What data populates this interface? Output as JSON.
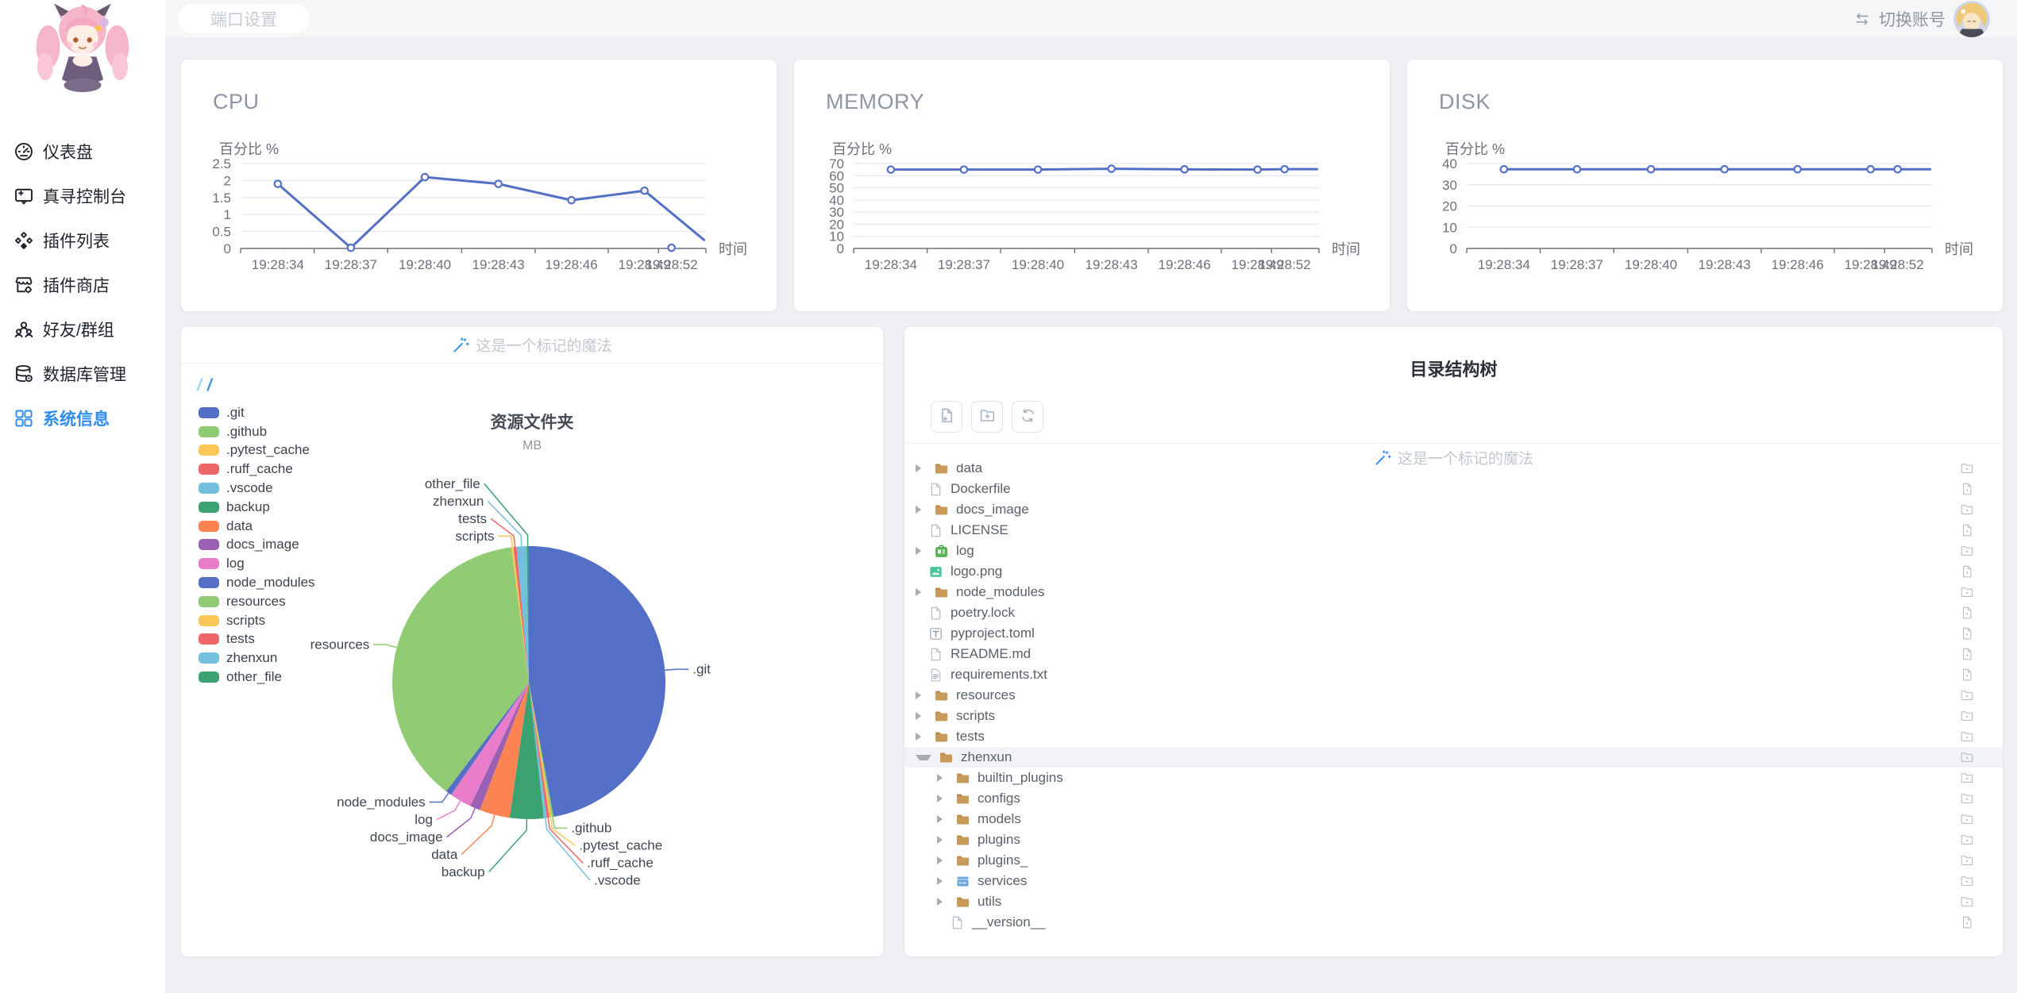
{
  "topbar": {
    "port_button": "端口设置",
    "switch_account": "切换账号"
  },
  "sidebar": {
    "items": [
      {
        "label": "仪表盘",
        "icon": "gauge-icon",
        "active": false
      },
      {
        "label": "真寻控制台",
        "icon": "console-icon",
        "active": false
      },
      {
        "label": "插件列表",
        "icon": "plugins-icon",
        "active": false
      },
      {
        "label": "插件商店",
        "icon": "shop-icon",
        "active": false
      },
      {
        "label": "好友/群组",
        "icon": "users-icon",
        "active": false
      },
      {
        "label": "数据库管理",
        "icon": "database-icon",
        "active": false
      },
      {
        "label": "系统信息",
        "icon": "grid-icon",
        "active": true
      }
    ]
  },
  "panels": {
    "resource": {
      "magic_note": "这是一个标记的魔法",
      "breadcrumb": [
        "/",
        "/"
      ]
    },
    "tree": {
      "title": "目录结构树",
      "magic_note": "这是一个标记的魔法",
      "toolbar": [
        {
          "name": "new-file-button",
          "icon": "file-plus-icon"
        },
        {
          "name": "new-folder-button",
          "icon": "folder-plus-icon"
        },
        {
          "name": "refresh-button",
          "icon": "refresh-icon"
        }
      ],
      "rows": [
        {
          "name": "data",
          "icon": "folder",
          "level": 0,
          "caret": "right"
        },
        {
          "name": "Dockerfile",
          "icon": "file",
          "level": 0,
          "caret": "none"
        },
        {
          "name": "docs_image",
          "icon": "folder",
          "level": 0,
          "caret": "right"
        },
        {
          "name": "LICENSE",
          "icon": "file",
          "level": 0,
          "caret": "none"
        },
        {
          "name": "log",
          "icon": "log",
          "level": 0,
          "caret": "right"
        },
        {
          "name": "logo.png",
          "icon": "image",
          "level": 0,
          "caret": "none"
        },
        {
          "name": "node_modules",
          "icon": "folder",
          "level": 0,
          "caret": "right"
        },
        {
          "name": "poetry.lock",
          "icon": "file",
          "level": 0,
          "caret": "none"
        },
        {
          "name": "pyproject.toml",
          "icon": "toml",
          "level": 0,
          "caret": "none"
        },
        {
          "name": "README.md",
          "icon": "file",
          "level": 0,
          "caret": "none"
        },
        {
          "name": "requirements.txt",
          "icon": "txt",
          "level": 0,
          "caret": "none"
        },
        {
          "name": "resources",
          "icon": "folder",
          "level": 0,
          "caret": "right"
        },
        {
          "name": "scripts",
          "icon": "folder",
          "level": 0,
          "caret": "right"
        },
        {
          "name": "tests",
          "icon": "folder",
          "level": 0,
          "caret": "right"
        },
        {
          "name": "zhenxun",
          "icon": "folder",
          "level": 0,
          "caret": "down",
          "selected": true
        },
        {
          "name": "builtin_plugins",
          "icon": "folder",
          "level": 1,
          "caret": "right"
        },
        {
          "name": "configs",
          "icon": "folder",
          "level": 1,
          "caret": "right"
        },
        {
          "name": "models",
          "icon": "folder",
          "level": 1,
          "caret": "right"
        },
        {
          "name": "plugins",
          "icon": "folder",
          "level": 1,
          "caret": "right"
        },
        {
          "name": "plugins_",
          "icon": "folder",
          "level": 1,
          "caret": "right"
        },
        {
          "name": "services",
          "icon": "services",
          "level": 1,
          "caret": "right"
        },
        {
          "name": "utils",
          "icon": "folder",
          "level": 1,
          "caret": "right"
        },
        {
          "name": "__version__",
          "icon": "file",
          "level": 1,
          "caret": "none"
        }
      ]
    }
  },
  "chart_data": [
    {
      "type": "line",
      "title": "CPU",
      "ylabel": "百分比 %",
      "xlabel": "时间",
      "categories": [
        "19:28:34",
        "19:28:37",
        "19:28:40",
        "19:28:43",
        "19:28:46",
        "19:28:49",
        "19:28:52"
      ],
      "values": [
        1.9,
        0.02,
        2.1,
        1.9,
        1.42,
        1.7,
        0.02
      ],
      "ylim": [
        0,
        2.5
      ],
      "yticks": [
        0,
        0.5,
        1,
        1.5,
        2,
        2.5
      ],
      "points_xf": [
        0.08,
        0.237,
        0.396,
        0.554,
        0.711,
        0.868,
        0.926
      ],
      "edge_point": {
        "xf": 0.996,
        "value": 0.25,
        "connect_from": 5
      },
      "line_color": "#5470c6",
      "grid": true,
      "legend_position": "none"
    },
    {
      "type": "line",
      "title": "MEMORY",
      "ylabel": "百分比 %",
      "xlabel": "时间",
      "categories": [
        "19:28:34",
        "19:28:37",
        "19:28:40",
        "19:28:43",
        "19:28:46",
        "19:28:49",
        "19:28:52"
      ],
      "values": [
        65,
        65,
        65,
        65.7,
        65.2,
        65,
        65.3
      ],
      "ylim": [
        0,
        70
      ],
      "yticks": [
        0,
        10,
        20,
        30,
        40,
        50,
        60,
        70
      ],
      "points_xf": [
        0.08,
        0.237,
        0.396,
        0.554,
        0.711,
        0.868,
        0.926
      ],
      "edge_point": {
        "xf": 0.996,
        "value": 65.3,
        "connect_from": 6
      },
      "line_color": "#5470c6",
      "grid": true,
      "legend_position": "none"
    },
    {
      "type": "line",
      "title": "DISK",
      "ylabel": "百分比 %",
      "xlabel": "时间",
      "categories": [
        "19:28:34",
        "19:28:37",
        "19:28:40",
        "19:28:43",
        "19:28:46",
        "19:28:49",
        "19:28:52"
      ],
      "values": [
        37.3,
        37.3,
        37.3,
        37.3,
        37.3,
        37.3,
        37.3
      ],
      "ylim": [
        0,
        40
      ],
      "yticks": [
        0,
        10,
        20,
        30,
        40
      ],
      "points_xf": [
        0.08,
        0.237,
        0.396,
        0.554,
        0.711,
        0.868,
        0.926
      ],
      "edge_point": {
        "xf": 0.996,
        "value": 37.3,
        "connect_from": 6
      },
      "line_color": "#5470c6",
      "grid": true,
      "legend_position": "none"
    },
    {
      "type": "pie",
      "title": "资源文件夹",
      "subtitle": "MB",
      "unit": "MB",
      "legend_position": "left",
      "slices": [
        {
          "label": ".git",
          "pct": 47.1,
          "color": "#5470c6"
        },
        {
          "label": ".github",
          "pct": 0.25,
          "color": "#91cc75"
        },
        {
          "label": ".pytest_cache",
          "pct": 0.25,
          "color": "#fac858"
        },
        {
          "label": ".ruff_cache",
          "pct": 0.3,
          "color": "#ee6666"
        },
        {
          "label": ".vscode",
          "pct": 0.35,
          "color": "#73c0de"
        },
        {
          "label": "backup",
          "pct": 4.0,
          "color": "#3ba272"
        },
        {
          "label": "data",
          "pct": 3.6,
          "color": "#fc8452"
        },
        {
          "label": "docs_image",
          "pct": 1.2,
          "color": "#9a60b4"
        },
        {
          "label": "log",
          "pct": 2.6,
          "color": "#ea7ccc"
        },
        {
          "label": "node_modules",
          "pct": 0.7,
          "color": "#5470c6"
        },
        {
          "label": "resources",
          "pct": 37.6,
          "color": "#91cc75"
        },
        {
          "label": "scripts",
          "pct": 0.25,
          "color": "#fac858"
        },
        {
          "label": "tests",
          "pct": 0.35,
          "color": "#ee6666"
        },
        {
          "label": "zhenxun",
          "pct": 1.2,
          "color": "#73c0de"
        },
        {
          "label": "other_file",
          "pct": 0.25,
          "color": "#3ba272"
        }
      ]
    }
  ]
}
